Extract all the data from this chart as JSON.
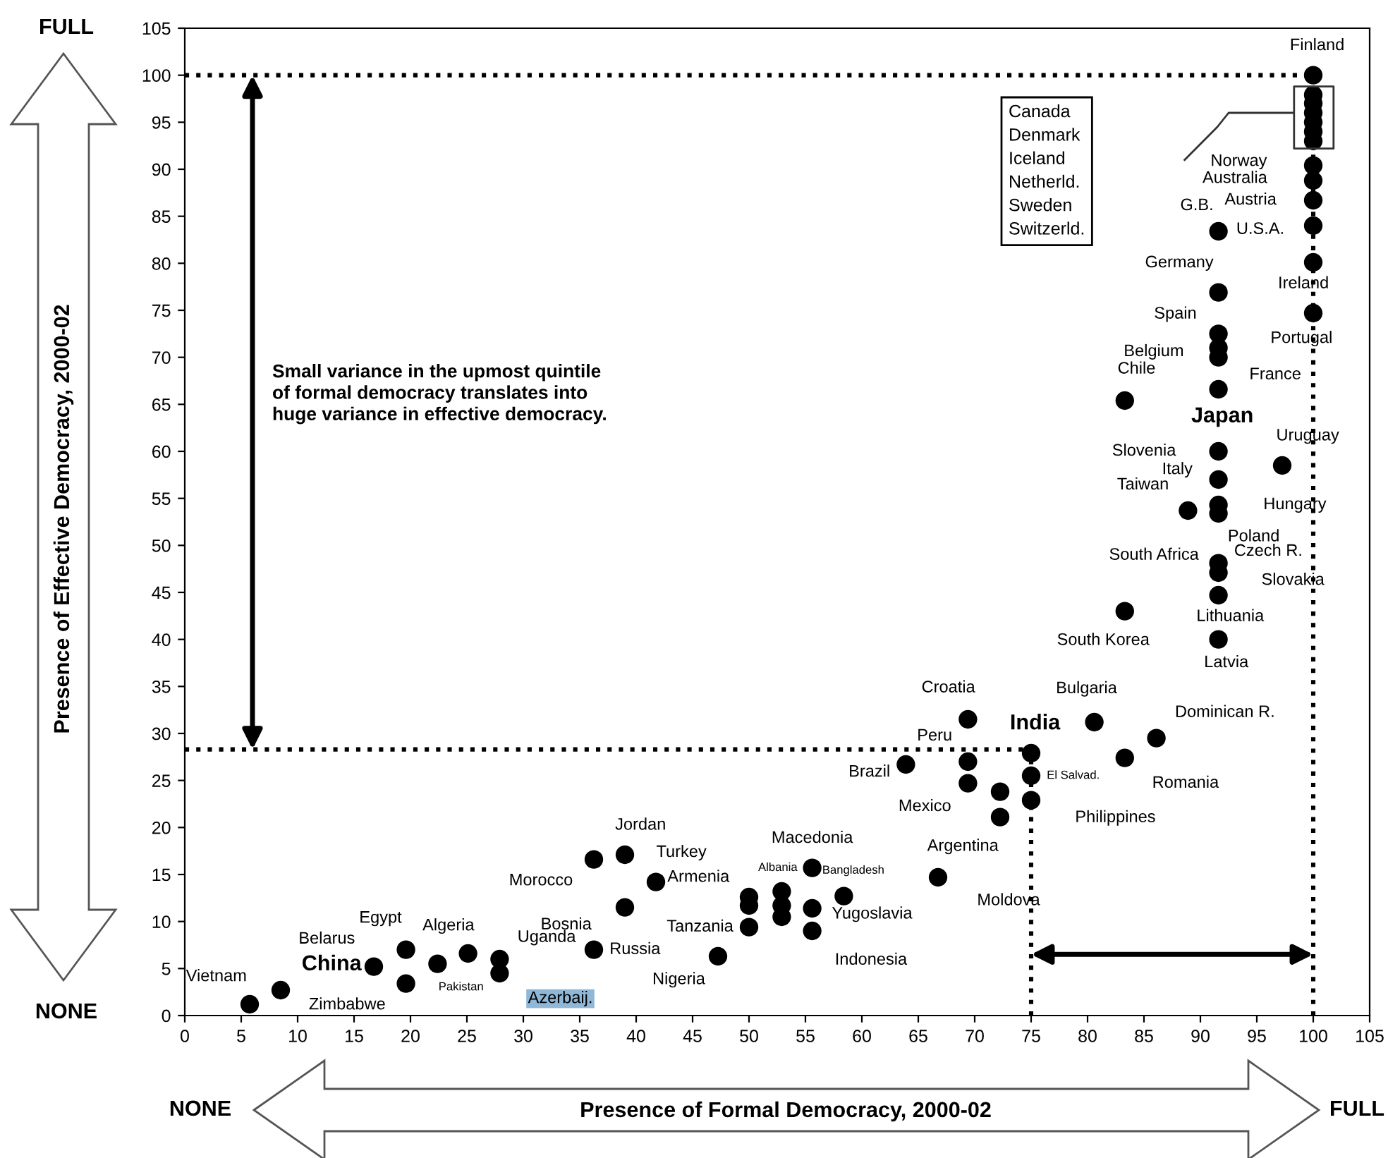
{
  "chart_data": {
    "type": "scatter",
    "xlabel": "Presence of Formal Democracy, 2000-02",
    "ylabel": "Presence of Effective Democracy, 2000-02",
    "xlim": [
      0,
      105
    ],
    "ylim": [
      0,
      105
    ],
    "xticks": [
      0,
      5,
      10,
      15,
      20,
      25,
      30,
      35,
      40,
      45,
      50,
      55,
      60,
      65,
      70,
      75,
      80,
      85,
      90,
      95,
      100,
      105
    ],
    "yticks": [
      0,
      5,
      10,
      15,
      20,
      25,
      30,
      35,
      40,
      45,
      50,
      55,
      60,
      65,
      70,
      75,
      80,
      85,
      90,
      95,
      100,
      105
    ],
    "grid": false,
    "legend": false,
    "marker": "circle",
    "series": [
      {
        "color": "#000000",
        "x": [
          5.75,
          8.5,
          19.6,
          16.75,
          19.6,
          22.4,
          25.1,
          27.9,
          27.9,
          36.25,
          39,
          41.75,
          39,
          36.25,
          50,
          50,
          50,
          52.9,
          52.9,
          52.9,
          55.6,
          55.6,
          55.6,
          58.4,
          47.25,
          66.75,
          63.9,
          69.4,
          69.4,
          69.4,
          72.25,
          72.25,
          75,
          75,
          75,
          80.6,
          86.1,
          83.3,
          83.3,
          91.6,
          91.6,
          91.6,
          91.6,
          91.6,
          91.6,
          91.6,
          91.6,
          88.9,
          91.6,
          91.6,
          97.25,
          91.6,
          91.6,
          91.6,
          83.3,
          91.6,
          100,
          100,
          100,
          100,
          100,
          100,
          100,
          100,
          100,
          100,
          100,
          100,
          100
        ],
        "values": [
          1.2,
          2.7,
          3.4,
          5.2,
          7.0,
          5.5,
          6.6,
          6.0,
          4.5,
          16.6,
          17.1,
          14.2,
          11.5,
          7.0,
          9.4,
          12.6,
          11.7,
          13.2,
          11.7,
          10.5,
          15.7,
          11.4,
          9.0,
          12.7,
          6.3,
          14.7,
          26.7,
          31.5,
          27.0,
          24.7,
          23.8,
          21.1,
          27.9,
          25.5,
          22.9,
          31.2,
          29.5,
          27.4,
          65.4,
          66.6,
          70.0,
          71.0,
          72.5,
          76.9,
          83.4,
          60.0,
          57.0,
          53.7,
          54.3,
          53.4,
          58.5,
          48.1,
          47.1,
          44.7,
          43.0,
          40.0,
          100,
          97.9,
          97.0,
          96.0,
          95.0,
          94.0,
          93.0,
          90.4,
          88.8,
          86.7,
          84.0,
          80.1,
          74.7
        ]
      }
    ],
    "ref_lines": [
      {
        "axis": "y",
        "value": 100,
        "line_style": "dotted"
      },
      {
        "axis": "x",
        "value": 100,
        "line_style": "dotted"
      },
      {
        "axis": "y",
        "value": 28.3,
        "line_style": "dotted"
      },
      {
        "axis": "x",
        "value": 75,
        "line_style": "dotted"
      }
    ],
    "annotations": [
      "FULL",
      "NONE",
      "NONE",
      "FULL",
      "Small variance in the upmost quintile\nof formal democracy translates into\nhuge variance in effective democracy.",
      "Canada\nDenmark\nIceland\nNetherld.\nSweden\nSwitzerld.",
      {
        "text": "Vietnam",
        "x": 5.75,
        "y": 1.2
      },
      {
        "text": "China",
        "x": 8.5,
        "y": 2.7
      },
      {
        "text": "Zimbabwe",
        "x": 19.6,
        "y": 3.4
      },
      {
        "text": "Belarus",
        "x": 16.75,
        "y": 5.2
      },
      {
        "text": "Egypt",
        "x": 19.6,
        "y": 7.0
      },
      {
        "text": "Pakistan",
        "x": 22.4,
        "y": 5.5
      },
      {
        "text": "Algeria",
        "x": 25.1,
        "y": 6.6
      },
      {
        "text": "Uganda",
        "x": 27.9,
        "y": 6.0
      },
      {
        "text": "Azerbaij.",
        "x": 27.9,
        "y": 4.5
      },
      {
        "text": "Morocco",
        "x": 36.25,
        "y": 16.6
      },
      {
        "text": "Jordan",
        "x": 39,
        "y": 17.1
      },
      {
        "text": "Turkey",
        "x": 41.75,
        "y": 14.2
      },
      {
        "text": "Bosnia",
        "x": 39,
        "y": 11.5
      },
      {
        "text": "Russia",
        "x": 36.25,
        "y": 7.0
      },
      {
        "text": "Tanzania",
        "x": 50,
        "y": 9.4
      },
      {
        "text": "Armenia",
        "x": 50,
        "y": 12.6
      },
      {
        "text": "Albania",
        "x": 52.9,
        "y": 13.2
      },
      {
        "text": "Macedonia",
        "x": 55.6,
        "y": 15.7
      },
      {
        "text": "Yugoslavia",
        "x": 55.6,
        "y": 11.4
      },
      {
        "text": "Indonesia",
        "x": 55.6,
        "y": 9.0
      },
      {
        "text": "Bangladesh",
        "x": 58.4,
        "y": 12.7
      },
      {
        "text": "Nigeria",
        "x": 47.25,
        "y": 6.3
      },
      {
        "text": "Moldova",
        "x": 66.75,
        "y": 14.7
      },
      {
        "text": "Brazil",
        "x": 63.9,
        "y": 26.7
      },
      {
        "text": "Croatia",
        "x": 69.4,
        "y": 31.5
      },
      {
        "text": "Peru",
        "x": 69.4,
        "y": 27.0
      },
      {
        "text": "Mexico",
        "x": 69.4,
        "y": 24.7
      },
      {
        "text": "Argentina",
        "x": 72.25,
        "y": 21.1
      },
      {
        "text": "India",
        "x": 75,
        "y": 27.9
      },
      {
        "text": "El Salvad.",
        "x": 75,
        "y": 25.5
      },
      {
        "text": "Philippines",
        "x": 75,
        "y": 22.9
      },
      {
        "text": "Bulgaria",
        "x": 80.6,
        "y": 31.2
      },
      {
        "text": "Dominican R.",
        "x": 86.1,
        "y": 29.5
      },
      {
        "text": "Romania",
        "x": 83.3,
        "y": 27.4
      },
      {
        "text": "Chile",
        "x": 83.3,
        "y": 65.4
      },
      {
        "text": "Japan",
        "x": 91.6,
        "y": 66.6
      },
      {
        "text": "France",
        "x": 91.6,
        "y": 70.0
      },
      {
        "text": "Belgium",
        "x": 91.6,
        "y": 71.0
      },
      {
        "text": "Spain",
        "x": 91.6,
        "y": 72.5
      },
      {
        "text": "Germany",
        "x": 91.6,
        "y": 76.9
      },
      {
        "text": "G.B.",
        "x": 91.6,
        "y": 83.4
      },
      {
        "text": "Slovenia",
        "x": 91.6,
        "y": 60.0
      },
      {
        "text": "Italy",
        "x": 91.6,
        "y": 57.0
      },
      {
        "text": "Taiwan",
        "x": 88.9,
        "y": 53.7
      },
      {
        "text": "Hungary",
        "x": 91.6,
        "y": 54.3
      },
      {
        "text": "Poland",
        "x": 91.6,
        "y": 53.4
      },
      {
        "text": "Uruguay",
        "x": 97.25,
        "y": 58.5
      },
      {
        "text": "South Africa",
        "x": 91.6,
        "y": 48.1
      },
      {
        "text": "Czech R.",
        "x": 91.6,
        "y": 48.1
      },
      {
        "text": "Slovakia",
        "x": 91.6,
        "y": 47.1
      },
      {
        "text": "Lithuania",
        "x": 91.6,
        "y": 44.7
      },
      {
        "text": "South Korea",
        "x": 83.3,
        "y": 43.0
      },
      {
        "text": "Latvia",
        "x": 91.6,
        "y": 40.0
      },
      {
        "text": "Finland",
        "x": 100,
        "y": 100
      },
      {
        "text": "Norway",
        "x": 100,
        "y": 90.4
      },
      {
        "text": "Australia",
        "x": 100,
        "y": 88.8
      },
      {
        "text": "Austria",
        "x": 100,
        "y": 86.7
      },
      {
        "text": "U.S.A.",
        "x": 100,
        "y": 84.0
      },
      {
        "text": "Ireland",
        "x": 100,
        "y": 80.1
      },
      {
        "text": "Portugal",
        "x": 100,
        "y": 74.7
      }
    ]
  }
}
